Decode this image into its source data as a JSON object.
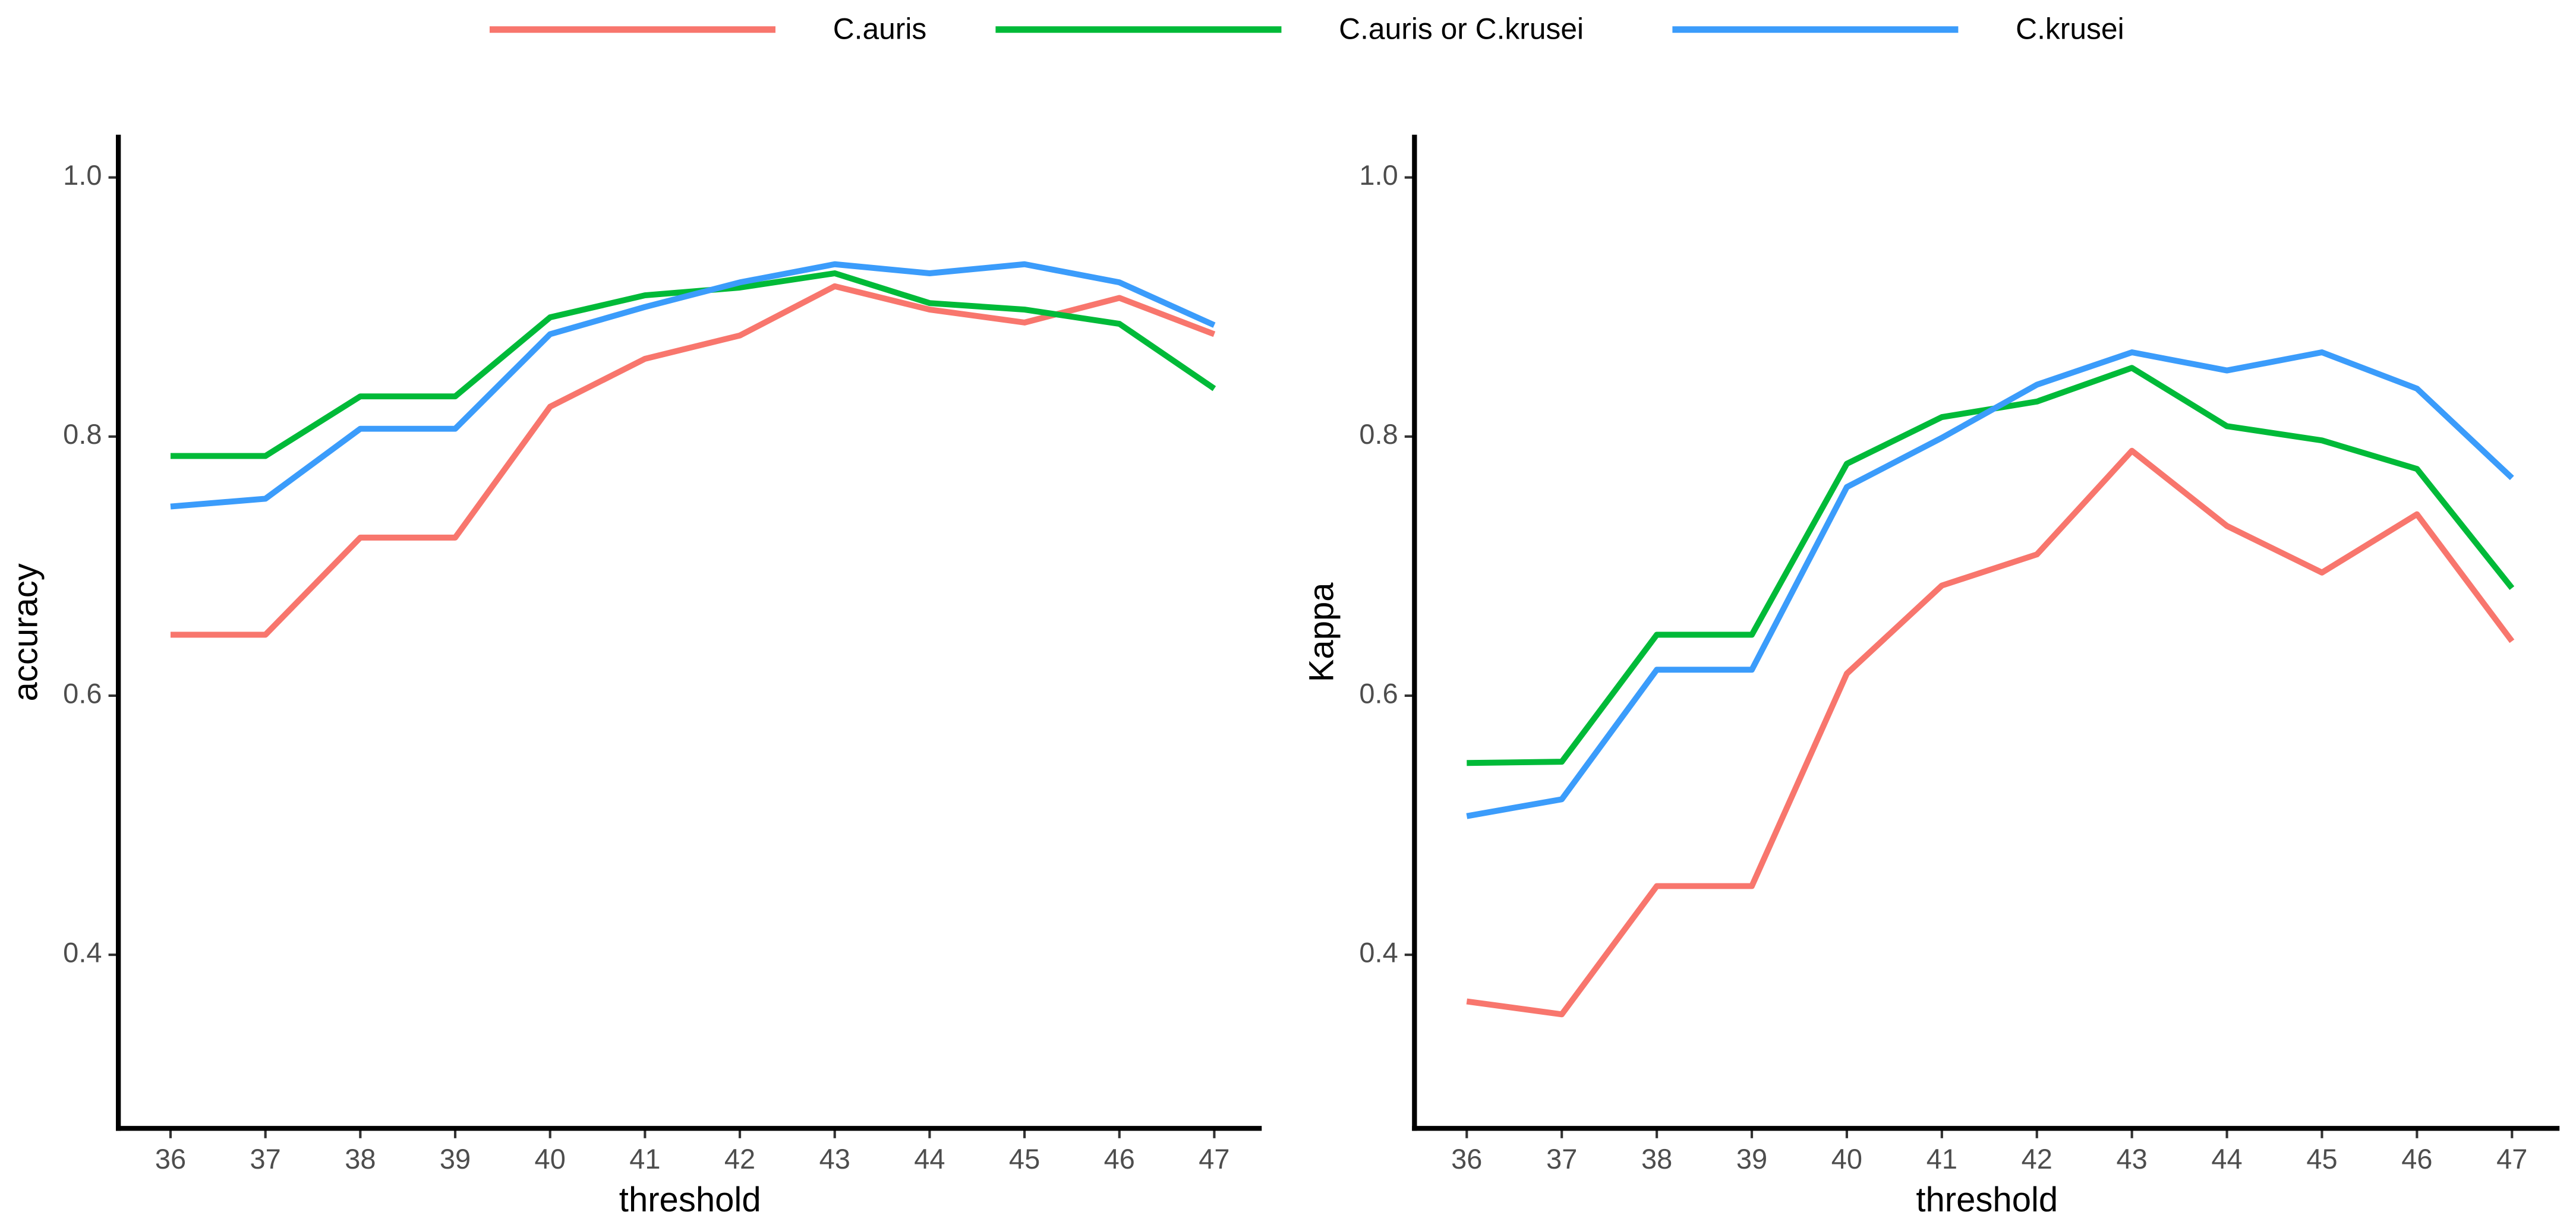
{
  "chart_data": [
    {
      "type": "line",
      "y_label": "accuracy",
      "x_label": "threshold",
      "x": [
        36,
        37,
        38,
        39,
        40,
        41,
        42,
        43,
        44,
        45,
        46,
        47
      ],
      "xlim": [
        35.45,
        47.5
      ],
      "xticks": [
        36,
        37,
        38,
        39,
        40,
        41,
        42,
        43,
        44,
        45,
        46,
        47
      ],
      "ylim": [
        0.266,
        1.033
      ],
      "yticks": [
        0.4,
        0.6,
        0.8,
        {
          "value": 1,
          "label": "1.0"
        }
      ],
      "series": [
        {
          "name": "C.auris",
          "color": "#F8766D",
          "values": [
            0.647,
            0.647,
            0.722,
            0.722,
            0.823,
            0.86,
            0.878,
            0.916,
            0.898,
            0.888,
            0.907,
            0.879
          ]
        },
        {
          "name": "C.auris or C.krusei",
          "color": "#00BA38",
          "values": [
            0.785,
            0.785,
            0.831,
            0.831,
            0.892,
            0.909,
            0.915,
            0.926,
            0.903,
            0.898,
            0.887,
            0.837
          ]
        },
        {
          "name": "C.krusei",
          "color": "#3B9CFB",
          "values": [
            0.746,
            0.752,
            0.806,
            0.806,
            0.879,
            0.9,
            0.919,
            0.933,
            0.926,
            0.933,
            0.919,
            0.886
          ]
        }
      ]
    },
    {
      "type": "line",
      "y_label": "Kappa",
      "x_label": "threshold",
      "x": [
        36,
        37,
        38,
        39,
        40,
        41,
        42,
        43,
        44,
        45,
        46,
        47
      ],
      "xlim": [
        35.45,
        47.5
      ],
      "xticks": [
        36,
        37,
        38,
        39,
        40,
        41,
        42,
        43,
        44,
        45,
        46,
        47
      ],
      "ylim": [
        0.266,
        1.033
      ],
      "yticks": [
        0.4,
        0.6,
        0.8,
        {
          "value": 1,
          "label": "1.0"
        }
      ],
      "series": [
        {
          "color": "#F8766D",
          "values": [
            0.364,
            0.354,
            0.453,
            0.453,
            0.617,
            0.685,
            0.709,
            0.789,
            0.731,
            0.695,
            0.74,
            0.642
          ]
        },
        {
          "color": "#00BA38",
          "values": [
            0.548,
            0.549,
            0.647,
            0.647,
            0.779,
            0.815,
            0.827,
            0.853,
            0.808,
            0.797,
            0.775,
            0.683
          ]
        },
        {
          "color": "#3B9CFB",
          "values": [
            0.507,
            0.52,
            0.62,
            0.62,
            0.761,
            0.799,
            0.84,
            0.865,
            0.851,
            0.865,
            0.837,
            0.768
          ]
        }
      ]
    }
  ]
}
